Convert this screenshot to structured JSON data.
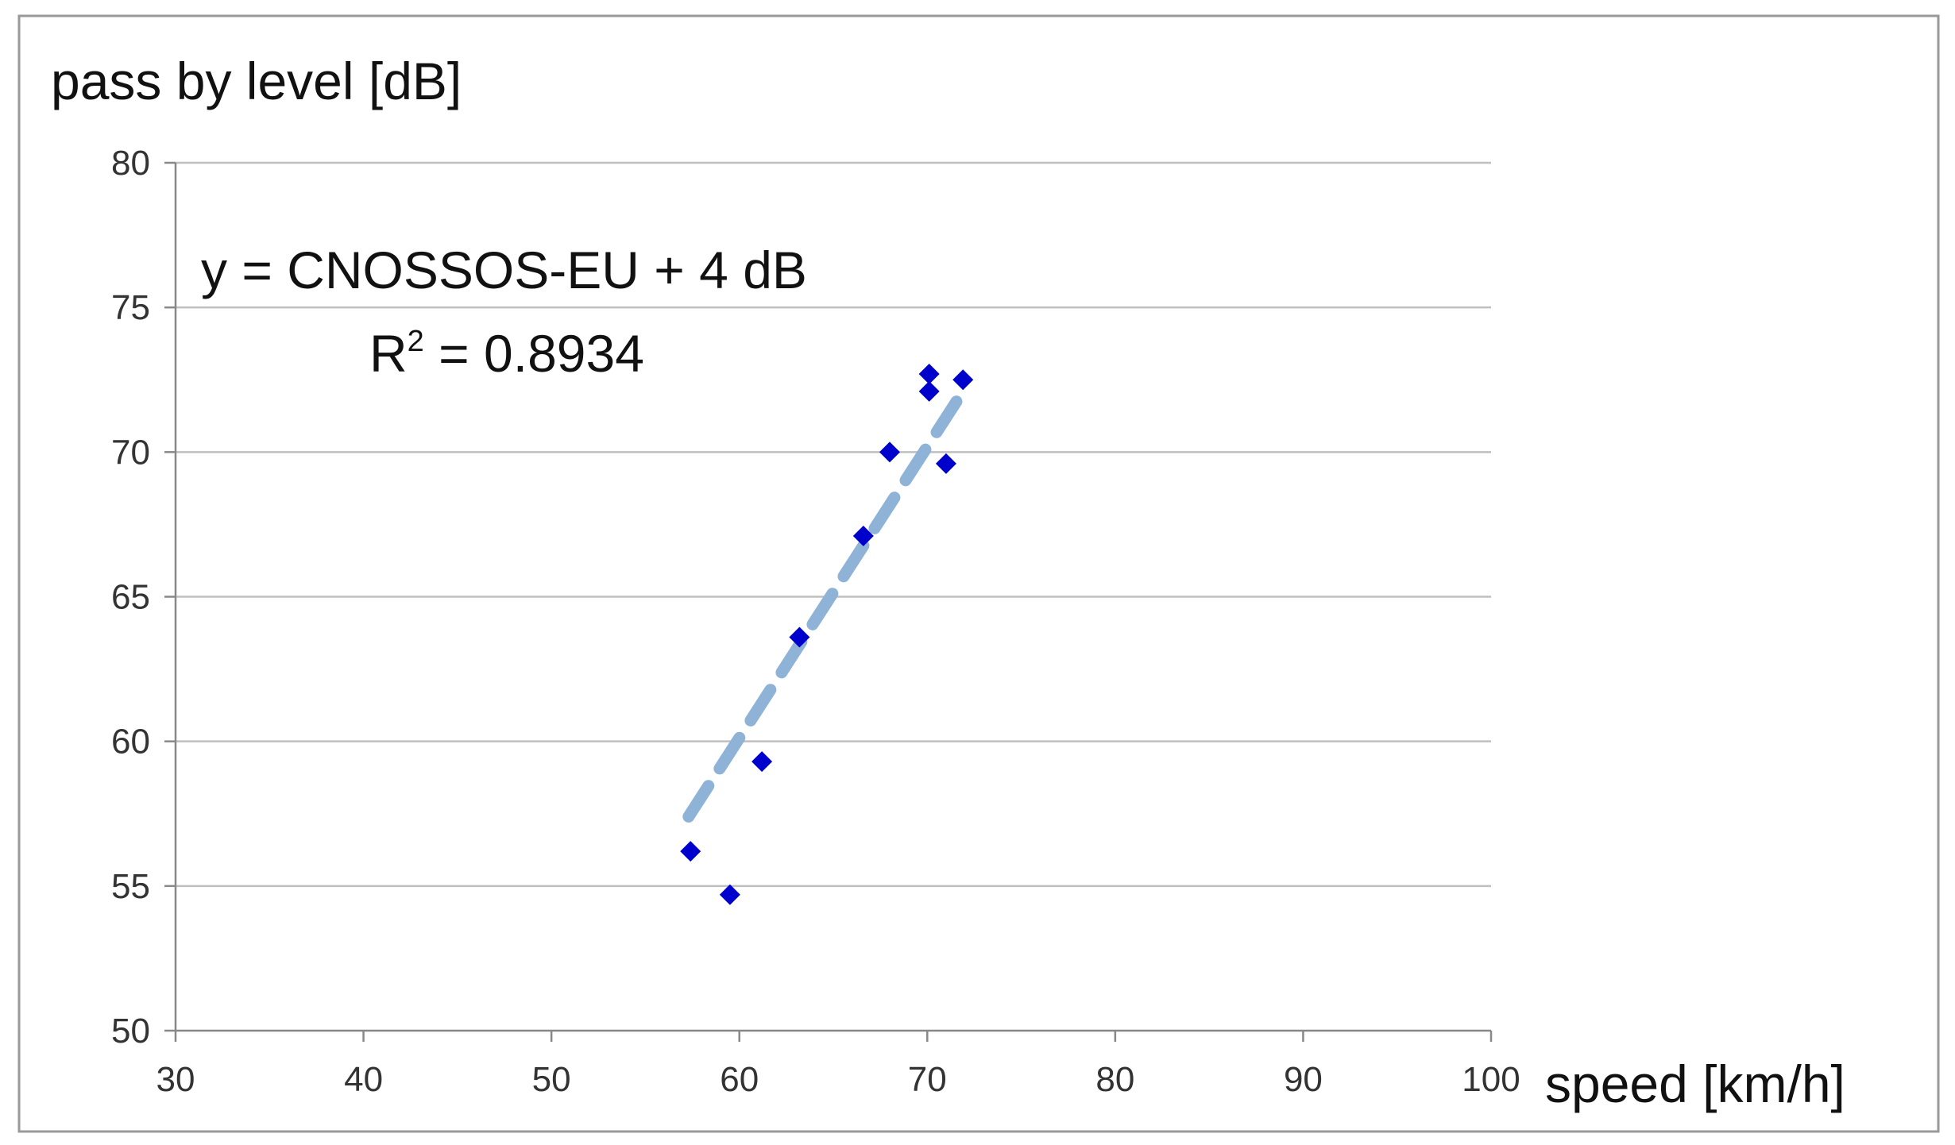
{
  "chart_data": {
    "type": "scatter",
    "ylabel": "pass by level [dB]",
    "xlabel": "speed [km/h]",
    "xlim": [
      30,
      100
    ],
    "ylim": [
      50,
      80
    ],
    "xticks": [
      30,
      40,
      50,
      60,
      70,
      80,
      90,
      100
    ],
    "yticks": [
      50,
      55,
      60,
      65,
      70,
      75,
      80
    ],
    "grid": "horizontal",
    "legend": "none",
    "annotation": {
      "equation": "y = CNOSSOS-EU + 4 dB",
      "r2_prefix": "R",
      "r2_sup": "2",
      "r2_value": " = 0.8934"
    },
    "series": [
      {
        "marker": "diamond",
        "color": "#0000cc",
        "points": [
          {
            "x": 57.4,
            "y": 56.2
          },
          {
            "x": 59.5,
            "y": 54.7
          },
          {
            "x": 61.2,
            "y": 59.3
          },
          {
            "x": 63.2,
            "y": 63.6
          },
          {
            "x": 66.6,
            "y": 67.1
          },
          {
            "x": 68.0,
            "y": 70.0
          },
          {
            "x": 70.1,
            "y": 72.7
          },
          {
            "x": 70.1,
            "y": 72.1
          },
          {
            "x": 71.0,
            "y": 69.6
          },
          {
            "x": 71.9,
            "y": 72.5
          }
        ]
      }
    ],
    "trendline": {
      "style": "dashed",
      "color": "#8fb3d6",
      "points": [
        {
          "x": 57.3,
          "y": 57.4
        },
        {
          "x": 72.0,
          "y": 72.2
        }
      ]
    },
    "colors": {
      "gridline": "#bfbfbf",
      "axis": "#888888",
      "frame": "#999999"
    }
  }
}
